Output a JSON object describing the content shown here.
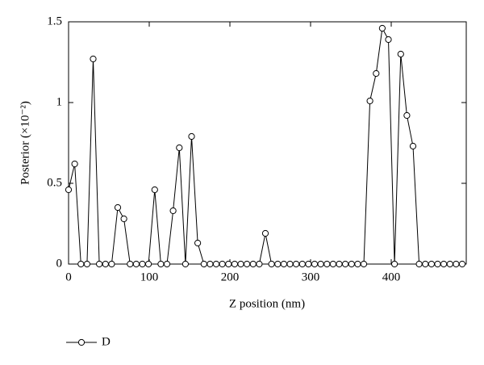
{
  "chart_data": {
    "type": "line",
    "xlabel": "Z position (nm)",
    "ylabel": "Posterior (×10⁻²)",
    "x": [
      0,
      7.6,
      15.3,
      22.9,
      30.5,
      38.1,
      45.8,
      53.4,
      61,
      68.6,
      76.3,
      83.9,
      91.5,
      99.1,
      106.8,
      114.4,
      122,
      129.6,
      137.3,
      144.9,
      152.5,
      160.1,
      167.8,
      175.4,
      183,
      190.6,
      198.3,
      205.9,
      213.5,
      221.1,
      228.8,
      236.4,
      244,
      251.6,
      259.3,
      266.9,
      274.5,
      282.1,
      289.8,
      297.4,
      305,
      312.6,
      320.3,
      327.9,
      335.5,
      343.1,
      350.8,
      358.4,
      366,
      373.6,
      381.3,
      388.9,
      396.5,
      404.1,
      411.8,
      419.4,
      427,
      434.6,
      442.3,
      449.9,
      457.5,
      465.1,
      472.8,
      480.4,
      488
    ],
    "series": [
      {
        "name": "D",
        "color": "#000000",
        "values": [
          0.46,
          0.62,
          0,
          0,
          1.27,
          0,
          0,
          0,
          0.35,
          0.28,
          0,
          0,
          0,
          0,
          0.46,
          0,
          0,
          0.33,
          0.72,
          0,
          0.79,
          0.13,
          0,
          0,
          0,
          0,
          0,
          0,
          0,
          0,
          0,
          0,
          0.19,
          0,
          0,
          0,
          0,
          0,
          0,
          0,
          0,
          0,
          0,
          0,
          0,
          0,
          0,
          0,
          0,
          1.01,
          1.18,
          1.46,
          1.39,
          0,
          1.3,
          0.92,
          0.73,
          0,
          0,
          0,
          0,
          0,
          0,
          0,
          0
        ]
      }
    ],
    "xlim": [
      0,
      493
    ],
    "xticks": [
      0,
      100,
      200,
      300,
      400
    ],
    "ylim": [
      0,
      1.5
    ],
    "yticks": [
      0,
      0.5,
      1,
      1.5
    ]
  }
}
